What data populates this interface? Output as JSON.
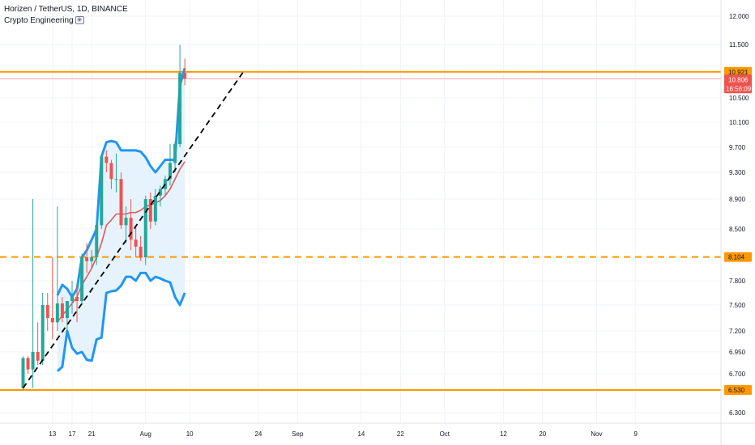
{
  "header": {
    "symbol_line": "Horizen / TetherUS, 1D, BINANCE",
    "indicator_line": "Crypto Engineering",
    "indicator_icon": "eye-icon"
  },
  "chart_data": {
    "type": "candlestick",
    "symbol": "Horizen / TetherUS",
    "interval": "1D",
    "exchange": "BINANCE",
    "y_axis": {
      "ylim": [
        6.05,
        12.45
      ],
      "ticks": [
        "12.000",
        "11.500",
        "10.900",
        "10.500",
        "10.100",
        "9.700",
        "9.300",
        "8.900",
        "8.500",
        "8.100",
        "7.800",
        "7.500",
        "7.200",
        "6.950",
        "6.700",
        "6.530",
        "6.300"
      ],
      "tick_values": [
        12.0,
        11.5,
        10.9,
        10.5,
        10.1,
        9.7,
        9.3,
        8.9,
        8.5,
        8.1,
        7.8,
        7.5,
        7.2,
        6.95,
        6.7,
        6.53,
        6.3
      ],
      "hidden_ticks": [
        "10.900"
      ]
    },
    "x_axis": {
      "ticks": [
        "13",
        "17",
        "21",
        "Aug",
        "10",
        "24",
        "Sep",
        "14",
        "22",
        "Oct",
        "12",
        "20",
        "Nov",
        "9"
      ],
      "tick_days": [
        13,
        17,
        21,
        32,
        41,
        55,
        63,
        76,
        84,
        93,
        105,
        113,
        124,
        132
      ]
    },
    "candles": [
      {
        "d": 7,
        "o": 6.55,
        "h": 6.9,
        "l": 6.53,
        "c": 6.88
      },
      {
        "d": 8,
        "o": 6.88,
        "h": 6.9,
        "l": 6.7,
        "c": 6.75
      },
      {
        "d": 9,
        "o": 6.75,
        "h": 8.9,
        "l": 6.55,
        "c": 6.95
      },
      {
        "d": 10,
        "o": 6.95,
        "h": 7.3,
        "l": 6.8,
        "c": 6.85
      },
      {
        "d": 11,
        "o": 6.85,
        "h": 7.65,
        "l": 6.8,
        "c": 7.5
      },
      {
        "d": 12,
        "o": 7.5,
        "h": 7.65,
        "l": 7.2,
        "c": 7.35
      },
      {
        "d": 13,
        "o": 7.35,
        "h": 8.1,
        "l": 7.1,
        "c": 7.3
      },
      {
        "d": 14,
        "o": 7.3,
        "h": 8.8,
        "l": 7.2,
        "c": 7.52
      },
      {
        "d": 15,
        "o": 7.52,
        "h": 7.6,
        "l": 7.3,
        "c": 7.35
      },
      {
        "d": 16,
        "o": 7.35,
        "h": 7.55,
        "l": 7.15,
        "c": 7.55
      },
      {
        "d": 17,
        "o": 7.55,
        "h": 7.8,
        "l": 7.4,
        "c": 7.6
      },
      {
        "d": 18,
        "o": 7.6,
        "h": 7.75,
        "l": 7.3,
        "c": 7.55
      },
      {
        "d": 19,
        "o": 7.55,
        "h": 8.15,
        "l": 7.5,
        "c": 8.1
      },
      {
        "d": 20,
        "o": 8.1,
        "h": 8.3,
        "l": 7.9,
        "c": 8.05
      },
      {
        "d": 21,
        "o": 8.05,
        "h": 8.2,
        "l": 7.95,
        "c": 8.1
      },
      {
        "d": 22,
        "o": 8.1,
        "h": 8.6,
        "l": 8.0,
        "c": 8.55
      },
      {
        "d": 23,
        "o": 8.55,
        "h": 9.6,
        "l": 8.5,
        "c": 9.55
      },
      {
        "d": 24,
        "o": 9.55,
        "h": 9.65,
        "l": 9.3,
        "c": 9.45
      },
      {
        "d": 25,
        "o": 9.45,
        "h": 9.5,
        "l": 9.05,
        "c": 9.2
      },
      {
        "d": 26,
        "o": 9.2,
        "h": 9.6,
        "l": 9.0,
        "c": 9.2
      },
      {
        "d": 27,
        "o": 9.2,
        "h": 9.3,
        "l": 8.5,
        "c": 8.55
      },
      {
        "d": 28,
        "o": 8.55,
        "h": 8.8,
        "l": 8.3,
        "c": 8.65
      },
      {
        "d": 29,
        "o": 8.65,
        "h": 8.9,
        "l": 8.2,
        "c": 8.35
      },
      {
        "d": 30,
        "o": 8.35,
        "h": 8.55,
        "l": 8.1,
        "c": 8.25
      },
      {
        "d": 31,
        "o": 8.25,
        "h": 8.4,
        "l": 8.05,
        "c": 8.1
      },
      {
        "d": 32,
        "o": 8.1,
        "h": 8.95,
        "l": 8.0,
        "c": 8.9
      },
      {
        "d": 33,
        "o": 8.9,
        "h": 9.0,
        "l": 8.5,
        "c": 8.6
      },
      {
        "d": 34,
        "o": 8.6,
        "h": 9.05,
        "l": 8.55,
        "c": 8.95
      },
      {
        "d": 35,
        "o": 8.95,
        "h": 9.1,
        "l": 8.8,
        "c": 9.05
      },
      {
        "d": 36,
        "o": 9.05,
        "h": 9.25,
        "l": 8.95,
        "c": 9.2
      },
      {
        "d": 37,
        "o": 9.2,
        "h": 9.75,
        "l": 9.1,
        "c": 9.45
      },
      {
        "d": 38,
        "o": 9.45,
        "h": 9.8,
        "l": 9.3,
        "c": 9.75
      },
      {
        "d": 39,
        "o": 9.75,
        "h": 11.5,
        "l": 9.7,
        "c": 10.9
      },
      {
        "d": 40,
        "o": 10.9,
        "h": 11.2,
        "l": 10.7,
        "c": 10.806
      }
    ],
    "bands": {
      "name": "Crypto Engineering",
      "days": [
        14,
        15,
        16,
        17,
        18,
        19,
        20,
        21,
        22,
        23,
        24,
        25,
        26,
        27,
        28,
        29,
        30,
        31,
        32,
        33,
        34,
        35,
        36,
        37,
        38,
        39,
        40
      ],
      "upper": [
        7.62,
        7.75,
        7.7,
        7.6,
        7.7,
        8.1,
        8.2,
        8.35,
        8.5,
        9.55,
        9.78,
        9.8,
        9.78,
        9.65,
        9.65,
        9.65,
        9.65,
        9.63,
        9.54,
        9.4,
        9.3,
        9.4,
        9.5,
        9.5,
        9.5,
        10.7,
        11.0
      ],
      "middle": [
        7.3,
        7.38,
        7.45,
        7.52,
        7.6,
        7.75,
        7.85,
        7.96,
        8.1,
        8.3,
        8.55,
        8.62,
        8.7,
        8.7,
        8.7,
        8.72,
        8.72,
        8.75,
        8.8,
        8.82,
        8.85,
        8.88,
        8.95,
        9.05,
        9.2,
        9.35,
        9.47
      ],
      "lower": [
        6.73,
        6.78,
        7.2,
        7.0,
        6.93,
        6.95,
        6.86,
        6.85,
        7.1,
        7.12,
        7.65,
        7.67,
        7.68,
        7.74,
        7.85,
        7.85,
        7.8,
        7.9,
        7.9,
        7.8,
        7.85,
        7.83,
        7.8,
        7.78,
        7.6,
        7.5,
        7.65
      ]
    },
    "trendline": {
      "style": "dashed",
      "start": {
        "d": 7,
        "v": 6.55
      },
      "end": {
        "d": 52,
        "v": 10.93
      }
    },
    "horizontal_lines": [
      {
        "value": 10.921,
        "label": "10.921",
        "style": "solid"
      },
      {
        "value": 8.104,
        "label": "8.104",
        "style": "dashed"
      },
      {
        "value": 6.53,
        "label": "6.530",
        "style": "solid"
      }
    ],
    "last_price": {
      "value": 10.806,
      "label": "10.806",
      "countdown": "16:56:09"
    },
    "grid": true,
    "colors": {
      "up": "#26a69a",
      "down": "#ef5350",
      "band_outer": "#2196f3",
      "band_fill": "#e3f2fd",
      "band_middle": "#e05a5a",
      "hline": "#ff9800",
      "trendline": "#000000",
      "last_price": "#ef5350"
    }
  }
}
